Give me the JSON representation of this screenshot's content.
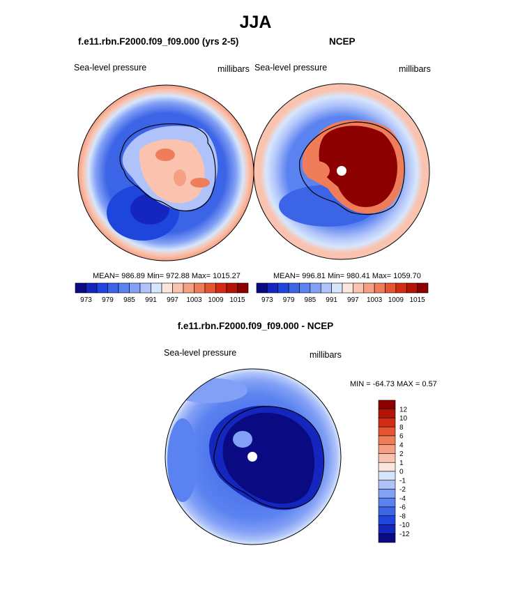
{
  "figure": {
    "title": "JJA"
  },
  "panels": [
    {
      "title": "f.e11.rbn.F2000.f09_f09.000 (yrs 2-5)",
      "left_label": "Sea-level pressure",
      "right_label": "millibars",
      "stats": "MEAN= 986.89  Min= 972.88  Max= 1015.27"
    },
    {
      "title": "NCEP",
      "left_label": "Sea-level pressure",
      "right_label": "millibars",
      "stats": "MEAN= 996.81  Min= 980.41  Max= 1059.70"
    },
    {
      "title": "f.e11.rbn.F2000.f09_f09.000 - NCEP",
      "left_label": "Sea-level pressure",
      "right_label": "millibars",
      "stats": "MIN = -64.73 MAX =   0.57"
    }
  ],
  "colorbars": {
    "slp": {
      "tick_labels": [
        "973",
        "979",
        "985",
        "991",
        "997",
        "1003",
        "1009",
        "1015"
      ],
      "colors": [
        "#0a0a82",
        "#1426be",
        "#1e46dc",
        "#3c64e6",
        "#5a82f0",
        "#82a0f5",
        "#afc3fa",
        "#d7e6fc",
        "#fae6dc",
        "#fac3af",
        "#f5a082",
        "#f07d5a",
        "#e65532",
        "#d22d14",
        "#b41405",
        "#8c0000"
      ]
    },
    "diff": {
      "tick_labels": [
        "12",
        "10",
        "8",
        "6",
        "4",
        "2",
        "1",
        "0",
        "-1",
        "-2",
        "-4",
        "-6",
        "-8",
        "-10",
        "-12"
      ],
      "colors_top_to_bottom": [
        "#8c0000",
        "#b41405",
        "#d22d14",
        "#e65532",
        "#f07d5a",
        "#f5a082",
        "#fac3af",
        "#fae6dc",
        "#d7e6fc",
        "#afc3fa",
        "#82a0f5",
        "#5a82f0",
        "#3c64e6",
        "#1e46dc",
        "#1426be",
        "#0a0a82"
      ]
    }
  }
}
